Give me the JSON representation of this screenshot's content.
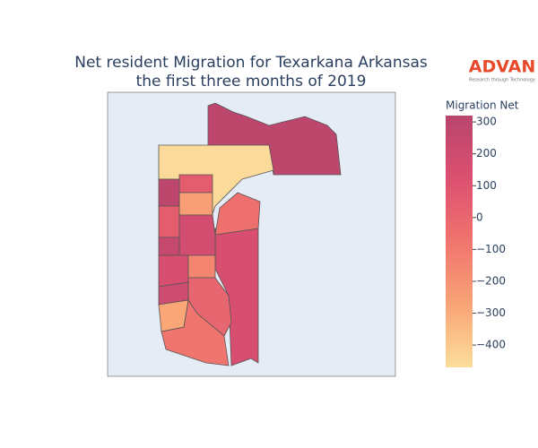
{
  "chart_data": {
    "type": "choropleth",
    "title": "Net resident Migration for Texarkana Arkansas",
    "subtitle": "the first three months of 2019",
    "logo": "ADVAN",
    "logo_tagline": "Research through Technology",
    "colorbar_title": "Migration Net",
    "values": [
      300,
      -460,
      150,
      -50,
      50,
      -250,
      300,
      50,
      180,
      250,
      150,
      -150,
      0,
      -80,
      200,
      -280
    ],
    "colorscale": [
      "#fcde9c",
      "#faa476",
      "#f0746e",
      "#dc5070",
      "#b9456d"
    ],
    "clim": [
      -470,
      320
    ],
    "yticks": [
      300,
      200,
      100,
      0,
      {
        "value": -100,
        "label": "−100"
      },
      {
        "value": -200,
        "label": "−200"
      },
      {
        "value": -300,
        "label": "−300"
      },
      {
        "value": -400,
        "label": "−400"
      }
    ]
  }
}
